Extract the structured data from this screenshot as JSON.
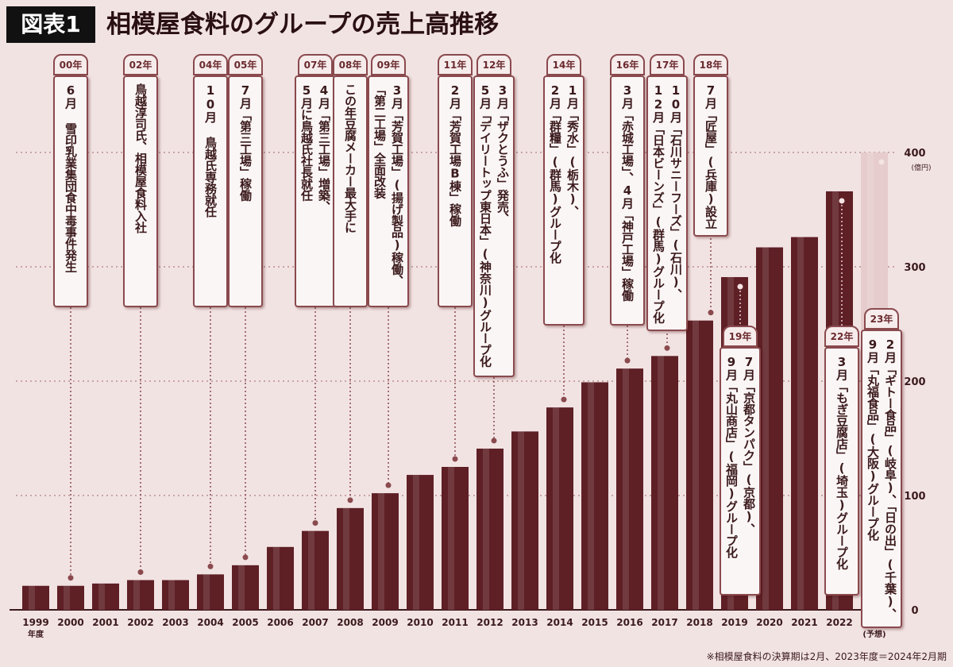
{
  "header": {
    "badge": "図表1",
    "title": "相模屋食料のグループの売上高推移"
  },
  "chart_data": {
    "type": "bar",
    "unit": "(億円)",
    "categories": [
      "1999",
      "2000",
      "2001",
      "2002",
      "2003",
      "2004",
      "2005",
      "2006",
      "2007",
      "2008",
      "2009",
      "2010",
      "2011",
      "2012",
      "2013",
      "2014",
      "2015",
      "2016",
      "2017",
      "2018",
      "2019",
      "2020",
      "2021",
      "2022",
      "2023"
    ],
    "x_sublabels": [
      {
        "category": "1999",
        "label": "年度"
      },
      {
        "category": "2023",
        "label": "(予想)"
      }
    ],
    "values": [
      21,
      21,
      23,
      26,
      26,
      31,
      39,
      55,
      69,
      89,
      102,
      118,
      125,
      141,
      156,
      177,
      199,
      211,
      222,
      253,
      291,
      317,
      326,
      366,
      400
    ],
    "colors": [
      "#5e1f25",
      "#5e1f25",
      "#5e1f25",
      "#5e1f25",
      "#5e1f25",
      "#5e1f25",
      "#5e1f25",
      "#5e1f25",
      "#5e1f25",
      "#5e1f25",
      "#5e1f25",
      "#5e1f25",
      "#5e1f25",
      "#5e1f25",
      "#5e1f25",
      "#5e1f25",
      "#5e1f25",
      "#5e1f25",
      "#5e1f25",
      "#5e1f25",
      "#5e1f25",
      "#5e1f25",
      "#5e1f25",
      "#5e1f25",
      "#e6cccc"
    ],
    "ylim": [
      0,
      400
    ],
    "yticks": [
      0,
      100,
      200,
      300,
      400
    ],
    "grid": true,
    "annotations": [
      {
        "year_label": "00年",
        "category": "2000",
        "lines": [
          "6月 雪印乳業集団食中毒事件発生"
        ]
      },
      {
        "year_label": "02年",
        "category": "2002",
        "lines": [
          "鳥越淳司氏、相模屋食料入社"
        ]
      },
      {
        "year_label": "04年",
        "category": "2004",
        "lines": [
          "10月 鳥越氏専務就任"
        ]
      },
      {
        "year_label": "05年",
        "category": "2005",
        "lines": [
          "7月「第三工場」稼働"
        ]
      },
      {
        "year_label": "07年",
        "category": "2007",
        "lines": [
          "4月「第三工場」増築、",
          "5月に鳥越氏社長就任"
        ]
      },
      {
        "year_label": "08年",
        "category": "2008",
        "lines": [
          "この年豆腐メーカー最大手に"
        ]
      },
      {
        "year_label": "09年",
        "category": "2009",
        "lines": [
          "3月「芳賀工場」(揚げ製品)稼働、",
          "「第二工場」全面改装"
        ]
      },
      {
        "year_label": "11年",
        "category": "2011",
        "lines": [
          "2月「芳賀工場B棟」稼働"
        ]
      },
      {
        "year_label": "12年",
        "category": "2012",
        "lines": [
          "3月「ザクとうふ」発売、",
          "5月「デイリートップ東日本」(神奈川)グループ化"
        ]
      },
      {
        "year_label": "14年",
        "category": "2014",
        "lines": [
          "1月「秀水」(栃木)、",
          "2月「群糧」(群馬)グループ化"
        ]
      },
      {
        "year_label": "16年",
        "category": "2016",
        "lines": [
          "3月「赤城工場」、4月「神戸工場」稼働"
        ]
      },
      {
        "year_label": "17年",
        "category": "2017",
        "lines": [
          "10月「石川サニーフーズ」(石川)、",
          "12月「日本ビーンズ」(群馬)グループ化"
        ]
      },
      {
        "year_label": "18年",
        "category": "2018",
        "lines": [
          "7月「匠屋」(兵庫)設立"
        ]
      },
      {
        "year_label": "19年",
        "category": "2019",
        "lines": [
          "7月「京都タンパク」(京都)、",
          "9月「丸山商店」(福岡)グループ化"
        ]
      },
      {
        "year_label": "22年",
        "category": "2022",
        "lines": [
          "3月「もぎ豆腐店」(埼玉)グループ化"
        ]
      },
      {
        "year_label": "23年",
        "category": "2023",
        "lines": [
          "2月「ギトー食品」(岐阜)、「日の出」(千葉)、",
          "9月「丸福食品」(大阪)グループ化"
        ]
      }
    ]
  },
  "footnote": "※相模屋食料の決算期は2月、2023年度＝2024年2月期"
}
